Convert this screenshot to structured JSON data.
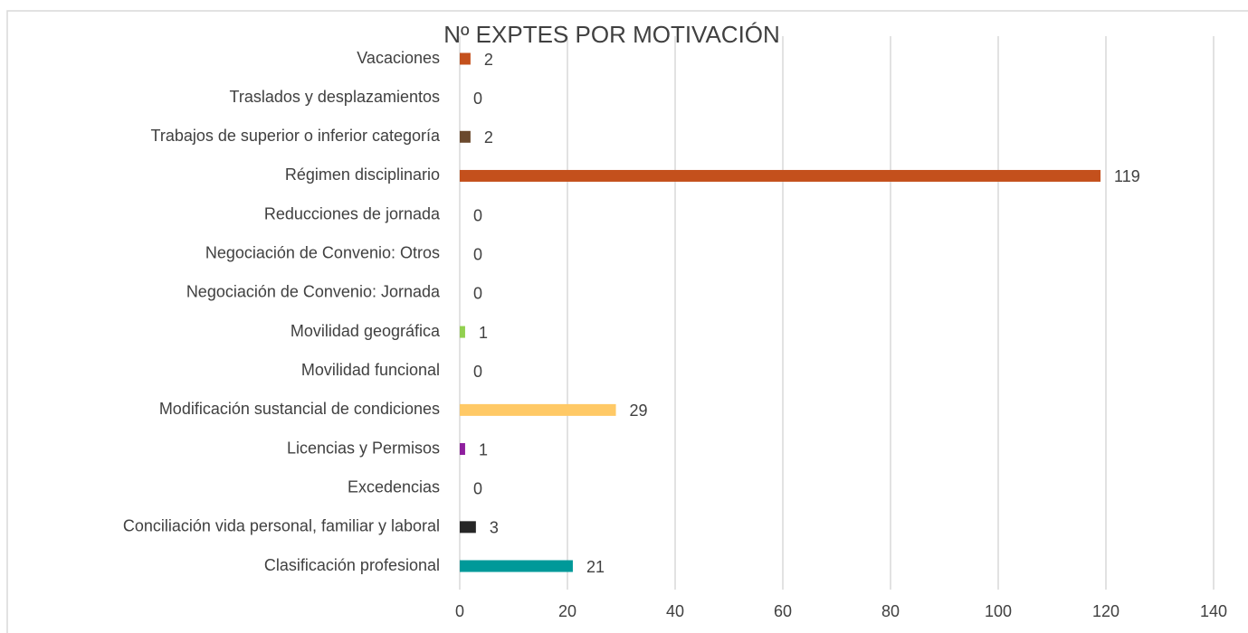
{
  "chart_data": {
    "type": "bar",
    "orientation": "horizontal",
    "title": "Nº EXPTES POR MOTIVACIÓN",
    "categories": [
      "Vacaciones",
      "Traslados y desplazamientos",
      "Trabajos de superior o inferior categoría",
      "Régimen disciplinario",
      "Reducciones de jornada",
      "Negociación de Convenio: Otros",
      "Negociación de Convenio: Jornada",
      "Movilidad geográfica",
      "Movilidad funcional",
      "Modificación sustancial de condiciones",
      "Licencias y Permisos",
      "Excedencias",
      "Conciliación vida personal, familiar y laboral",
      "Clasificación profesional"
    ],
    "values": [
      2,
      0,
      2,
      119,
      0,
      0,
      0,
      1,
      0,
      29,
      1,
      0,
      3,
      21
    ],
    "colors": [
      "#c4501c",
      null,
      "#6b4a2e",
      "#c4501c",
      null,
      null,
      null,
      "#92d050",
      null,
      "#ffc966",
      "#8e1f9e",
      null,
      "#262626",
      "#009999"
    ],
    "xlim": [
      0,
      140
    ],
    "xticks": [
      0,
      20,
      40,
      60,
      80,
      100,
      120,
      140
    ],
    "grid": true
  }
}
